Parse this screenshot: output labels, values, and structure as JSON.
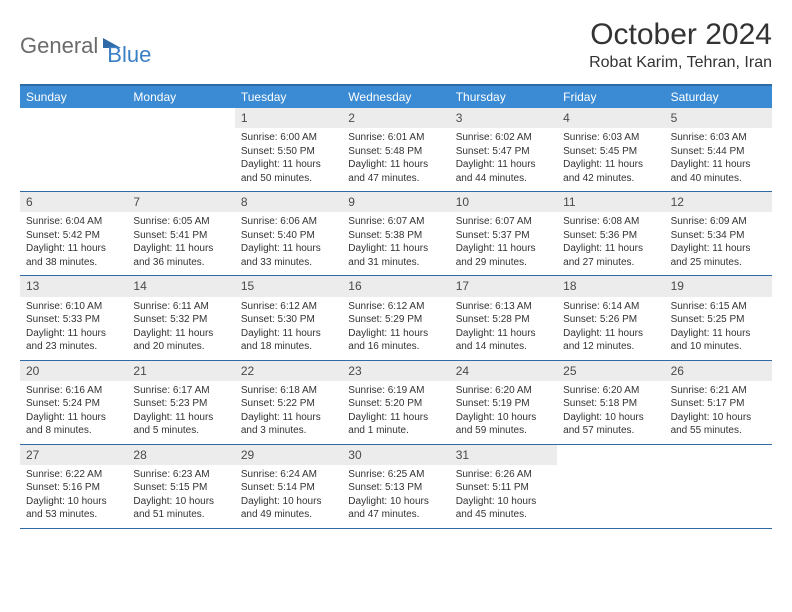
{
  "brand": {
    "part1": "General",
    "part2": "Blue"
  },
  "title": "October 2024",
  "location": "Robat Karim, Tehran, Iran",
  "colors": {
    "header_bar": "#3b8bd4",
    "rule": "#2f6aa8",
    "daynum_bg": "#ececec",
    "text": "#333333",
    "logo_gray": "#6b6b6b",
    "logo_blue": "#3b7fc4"
  },
  "day_labels": [
    "Sunday",
    "Monday",
    "Tuesday",
    "Wednesday",
    "Thursday",
    "Friday",
    "Saturday"
  ],
  "weeks": [
    [
      {
        "n": "",
        "sr": "",
        "ss": "",
        "dl": ""
      },
      {
        "n": "",
        "sr": "",
        "ss": "",
        "dl": ""
      },
      {
        "n": "1",
        "sr": "Sunrise: 6:00 AM",
        "ss": "Sunset: 5:50 PM",
        "dl": "Daylight: 11 hours and 50 minutes."
      },
      {
        "n": "2",
        "sr": "Sunrise: 6:01 AM",
        "ss": "Sunset: 5:48 PM",
        "dl": "Daylight: 11 hours and 47 minutes."
      },
      {
        "n": "3",
        "sr": "Sunrise: 6:02 AM",
        "ss": "Sunset: 5:47 PM",
        "dl": "Daylight: 11 hours and 44 minutes."
      },
      {
        "n": "4",
        "sr": "Sunrise: 6:03 AM",
        "ss": "Sunset: 5:45 PM",
        "dl": "Daylight: 11 hours and 42 minutes."
      },
      {
        "n": "5",
        "sr": "Sunrise: 6:03 AM",
        "ss": "Sunset: 5:44 PM",
        "dl": "Daylight: 11 hours and 40 minutes."
      }
    ],
    [
      {
        "n": "6",
        "sr": "Sunrise: 6:04 AM",
        "ss": "Sunset: 5:42 PM",
        "dl": "Daylight: 11 hours and 38 minutes."
      },
      {
        "n": "7",
        "sr": "Sunrise: 6:05 AM",
        "ss": "Sunset: 5:41 PM",
        "dl": "Daylight: 11 hours and 36 minutes."
      },
      {
        "n": "8",
        "sr": "Sunrise: 6:06 AM",
        "ss": "Sunset: 5:40 PM",
        "dl": "Daylight: 11 hours and 33 minutes."
      },
      {
        "n": "9",
        "sr": "Sunrise: 6:07 AM",
        "ss": "Sunset: 5:38 PM",
        "dl": "Daylight: 11 hours and 31 minutes."
      },
      {
        "n": "10",
        "sr": "Sunrise: 6:07 AM",
        "ss": "Sunset: 5:37 PM",
        "dl": "Daylight: 11 hours and 29 minutes."
      },
      {
        "n": "11",
        "sr": "Sunrise: 6:08 AM",
        "ss": "Sunset: 5:36 PM",
        "dl": "Daylight: 11 hours and 27 minutes."
      },
      {
        "n": "12",
        "sr": "Sunrise: 6:09 AM",
        "ss": "Sunset: 5:34 PM",
        "dl": "Daylight: 11 hours and 25 minutes."
      }
    ],
    [
      {
        "n": "13",
        "sr": "Sunrise: 6:10 AM",
        "ss": "Sunset: 5:33 PM",
        "dl": "Daylight: 11 hours and 23 minutes."
      },
      {
        "n": "14",
        "sr": "Sunrise: 6:11 AM",
        "ss": "Sunset: 5:32 PM",
        "dl": "Daylight: 11 hours and 20 minutes."
      },
      {
        "n": "15",
        "sr": "Sunrise: 6:12 AM",
        "ss": "Sunset: 5:30 PM",
        "dl": "Daylight: 11 hours and 18 minutes."
      },
      {
        "n": "16",
        "sr": "Sunrise: 6:12 AM",
        "ss": "Sunset: 5:29 PM",
        "dl": "Daylight: 11 hours and 16 minutes."
      },
      {
        "n": "17",
        "sr": "Sunrise: 6:13 AM",
        "ss": "Sunset: 5:28 PM",
        "dl": "Daylight: 11 hours and 14 minutes."
      },
      {
        "n": "18",
        "sr": "Sunrise: 6:14 AM",
        "ss": "Sunset: 5:26 PM",
        "dl": "Daylight: 11 hours and 12 minutes."
      },
      {
        "n": "19",
        "sr": "Sunrise: 6:15 AM",
        "ss": "Sunset: 5:25 PM",
        "dl": "Daylight: 11 hours and 10 minutes."
      }
    ],
    [
      {
        "n": "20",
        "sr": "Sunrise: 6:16 AM",
        "ss": "Sunset: 5:24 PM",
        "dl": "Daylight: 11 hours and 8 minutes."
      },
      {
        "n": "21",
        "sr": "Sunrise: 6:17 AM",
        "ss": "Sunset: 5:23 PM",
        "dl": "Daylight: 11 hours and 5 minutes."
      },
      {
        "n": "22",
        "sr": "Sunrise: 6:18 AM",
        "ss": "Sunset: 5:22 PM",
        "dl": "Daylight: 11 hours and 3 minutes."
      },
      {
        "n": "23",
        "sr": "Sunrise: 6:19 AM",
        "ss": "Sunset: 5:20 PM",
        "dl": "Daylight: 11 hours and 1 minute."
      },
      {
        "n": "24",
        "sr": "Sunrise: 6:20 AM",
        "ss": "Sunset: 5:19 PM",
        "dl": "Daylight: 10 hours and 59 minutes."
      },
      {
        "n": "25",
        "sr": "Sunrise: 6:20 AM",
        "ss": "Sunset: 5:18 PM",
        "dl": "Daylight: 10 hours and 57 minutes."
      },
      {
        "n": "26",
        "sr": "Sunrise: 6:21 AM",
        "ss": "Sunset: 5:17 PM",
        "dl": "Daylight: 10 hours and 55 minutes."
      }
    ],
    [
      {
        "n": "27",
        "sr": "Sunrise: 6:22 AM",
        "ss": "Sunset: 5:16 PM",
        "dl": "Daylight: 10 hours and 53 minutes."
      },
      {
        "n": "28",
        "sr": "Sunrise: 6:23 AM",
        "ss": "Sunset: 5:15 PM",
        "dl": "Daylight: 10 hours and 51 minutes."
      },
      {
        "n": "29",
        "sr": "Sunrise: 6:24 AM",
        "ss": "Sunset: 5:14 PM",
        "dl": "Daylight: 10 hours and 49 minutes."
      },
      {
        "n": "30",
        "sr": "Sunrise: 6:25 AM",
        "ss": "Sunset: 5:13 PM",
        "dl": "Daylight: 10 hours and 47 minutes."
      },
      {
        "n": "31",
        "sr": "Sunrise: 6:26 AM",
        "ss": "Sunset: 5:11 PM",
        "dl": "Daylight: 10 hours and 45 minutes."
      },
      {
        "n": "",
        "sr": "",
        "ss": "",
        "dl": ""
      },
      {
        "n": "",
        "sr": "",
        "ss": "",
        "dl": ""
      }
    ]
  ]
}
